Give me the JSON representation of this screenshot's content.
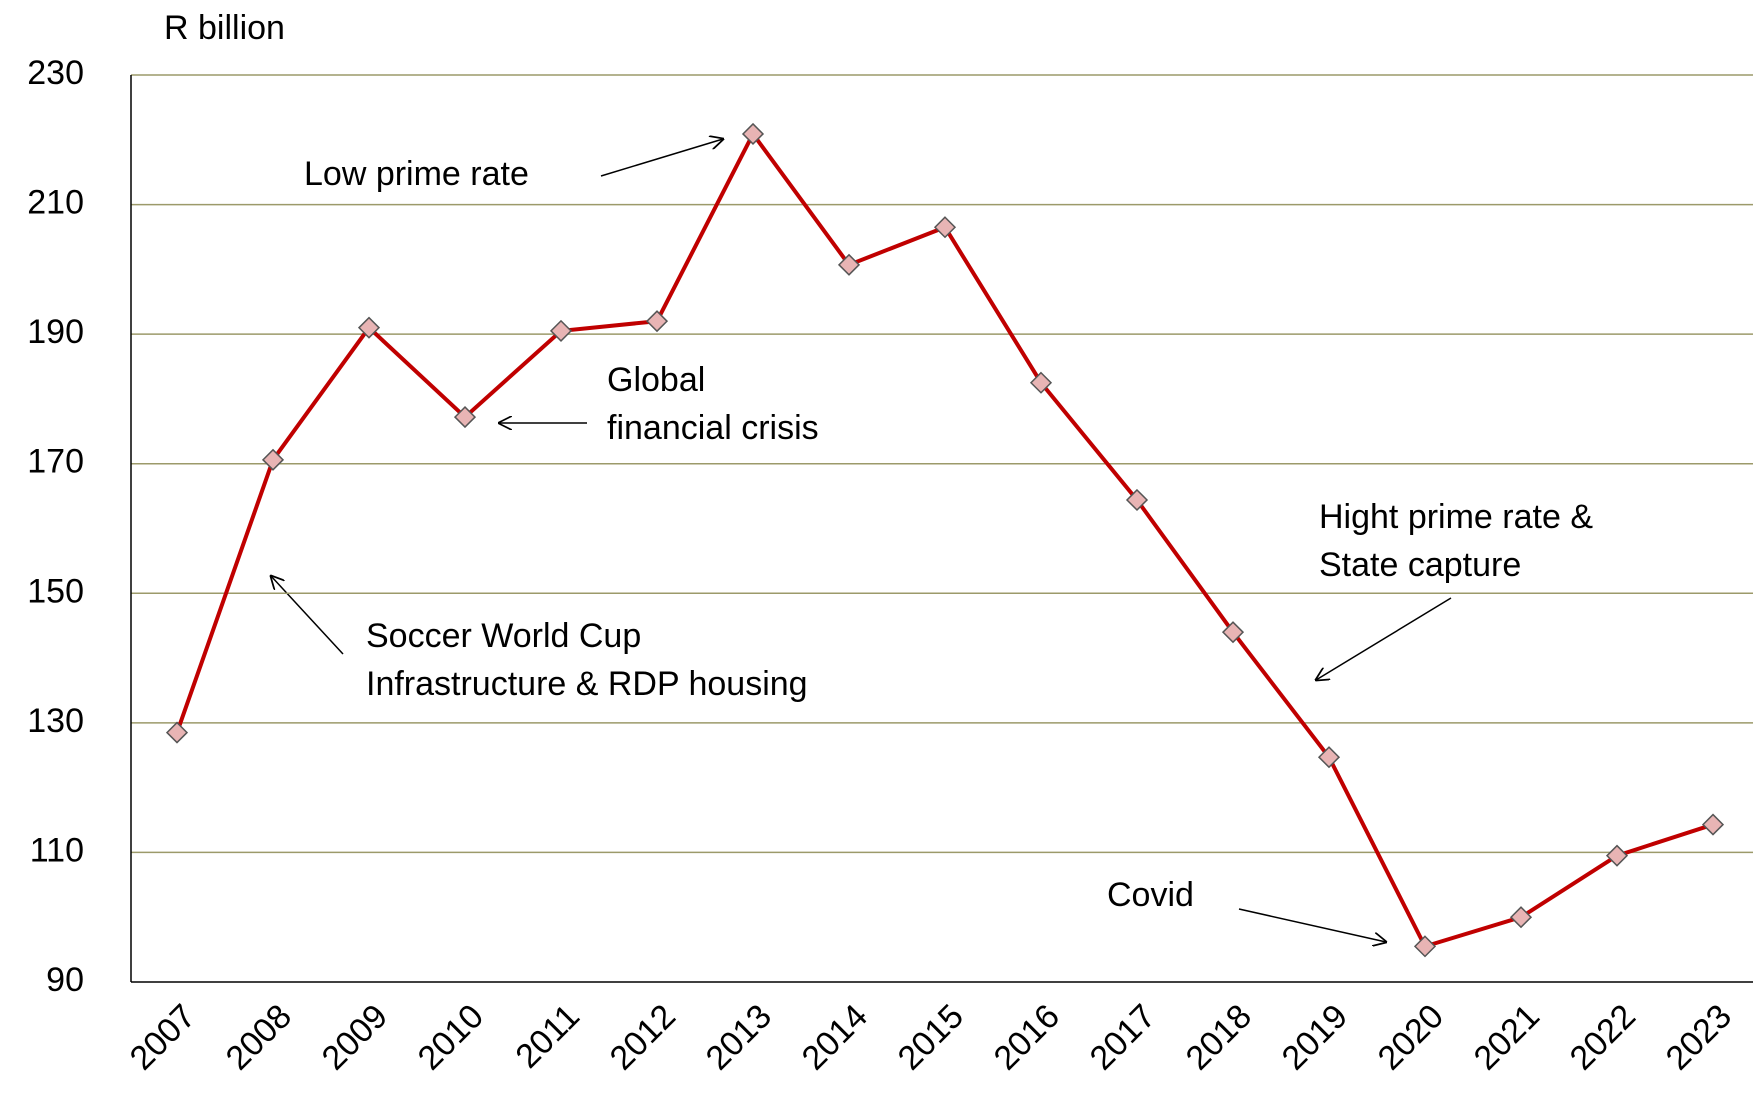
{
  "chart_data": {
    "type": "line",
    "y_label": "R billion",
    "categories": [
      "2007",
      "2008",
      "2009",
      "2010",
      "2011",
      "2012",
      "2013",
      "2014",
      "2015",
      "2016",
      "2017",
      "2018",
      "2019",
      "2020",
      "2021",
      "2022",
      "2023"
    ],
    "series": [
      {
        "color": "#c00000",
        "values": [
          128.5,
          170.6,
          191,
          177.2,
          190.5,
          192,
          220.9,
          200.7,
          206.5,
          182.5,
          164.4,
          144,
          124.7,
          95.5,
          100,
          109.5,
          114.3
        ]
      }
    ],
    "ylim": [
      90,
      230
    ],
    "yticks": [
      90,
      110,
      130,
      150,
      170,
      190,
      210,
      230
    ],
    "grid": true,
    "annotations": [
      {
        "lines": [
          "Low prime rate"
        ]
      },
      {
        "lines": [
          "Global",
          "financial crisis"
        ]
      },
      {
        "lines": [
          "Soccer World Cup",
          "Infrastructure & RDP housing"
        ]
      },
      {
        "lines": [
          "Hight prime rate &",
          "State capture"
        ]
      },
      {
        "lines": [
          "Covid"
        ]
      }
    ]
  }
}
